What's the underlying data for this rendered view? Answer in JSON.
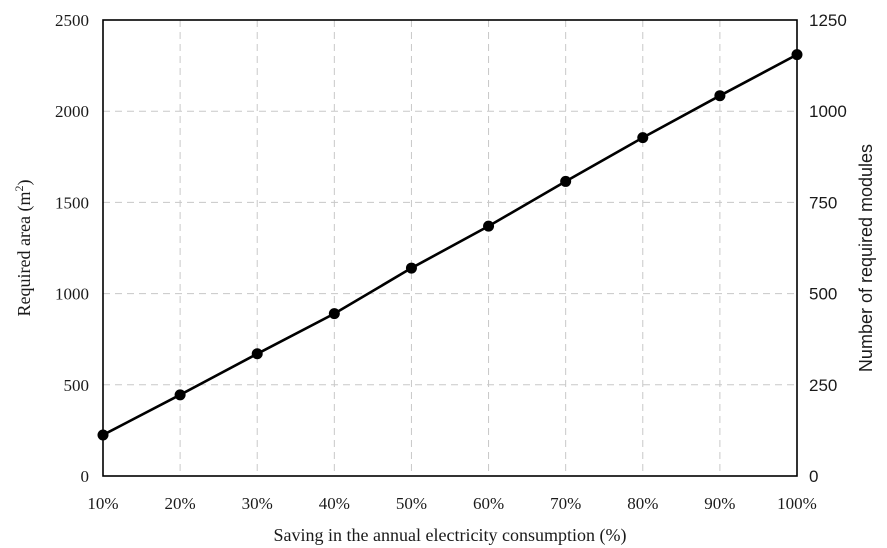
{
  "chart_data": {
    "type": "line",
    "xlabel": "Saving in the annual electricity  consumption (%)",
    "ylabel_left": "Required area (m²)",
    "ylabel_right": "Number  of required modules",
    "categories": [
      "10%",
      "20%",
      "30%",
      "40%",
      "50%",
      "60%",
      "70%",
      "80%",
      "90%",
      "100%"
    ],
    "series": [
      {
        "values": [
          225,
          445,
          670,
          890,
          1140,
          1370,
          1615,
          1855,
          2085,
          2310
        ]
      }
    ],
    "ylim_left": [
      0,
      2500
    ],
    "yticks_left": [
      "0",
      "500",
      "1000",
      "1500",
      "2000",
      "2500"
    ],
    "ylim_right": [
      0,
      1250
    ],
    "yticks_right": [
      "0",
      "250",
      "500",
      "750",
      "1000",
      "1250"
    ],
    "grid": true,
    "legend": "none"
  }
}
